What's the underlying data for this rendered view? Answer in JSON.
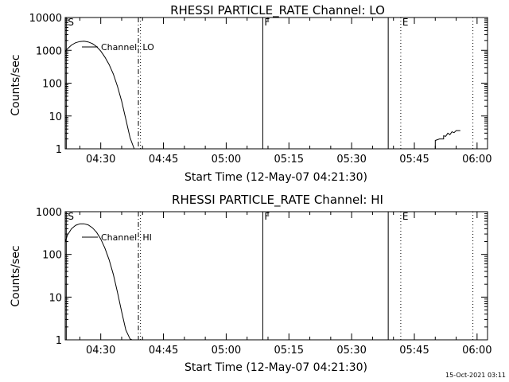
{
  "timestamp": "15-Oct-2021 03:11",
  "chart_data": [
    {
      "type": "line",
      "title": "RHESSI PARTICLE_RATE Channel: LO",
      "xlabel": "Start Time (12-May-07 04:21:30)",
      "ylabel": "Counts/sec",
      "yscale": "log",
      "ylim": [
        1,
        10000
      ],
      "xlim": [
        "04:21:30",
        "06:02:30"
      ],
      "x_tick_labels": [
        "04:30",
        "04:45",
        "05:00",
        "05:15",
        "05:30",
        "05:45",
        "06:00"
      ],
      "y_tick_labels": [
        "1",
        "10",
        "100",
        "1000",
        "10000"
      ],
      "legend": "top-left",
      "series": [
        {
          "name": "Channel: LO",
          "x": [
            "04:21:30",
            "04:22:00",
            "04:23:00",
            "04:24:00",
            "04:25:00",
            "04:26:00",
            "04:27:00",
            "04:28:00",
            "04:29:00",
            "04:30:00",
            "04:31:00",
            "04:32:00",
            "04:33:00",
            "04:34:00",
            "04:35:00",
            "04:36:00",
            "04:37:00",
            "04:38:00"
          ],
          "y": [
            900,
            1100,
            1450,
            1700,
            1850,
            1900,
            1800,
            1600,
            1300,
            950,
            620,
            370,
            190,
            80,
            28,
            8,
            2.2,
            1
          ]
        },
        {
          "name": "",
          "x": [
            "05:50:00",
            "05:50:00",
            "05:51:00",
            "05:52:00",
            "05:52:00",
            "05:52:30",
            "05:53:00",
            "05:53:30",
            "05:54:00",
            "05:54:30",
            "05:55:00",
            "05:56:00"
          ],
          "y": [
            1,
            1.8,
            2.0,
            2.0,
            2.5,
            2.4,
            3.0,
            2.7,
            3.3,
            3.1,
            3.6,
            3.6
          ]
        }
      ],
      "markers": [
        {
          "label": "S",
          "time": "04:21:45",
          "style": "solid"
        },
        {
          "label": "",
          "time": "04:39:00",
          "style": "dashdot"
        },
        {
          "label": "",
          "time": "04:39:30",
          "style": "dotted"
        },
        {
          "label": "F",
          "time": "05:08:45",
          "style": "solid"
        },
        {
          "label": "",
          "time": "05:38:45",
          "style": "solid"
        },
        {
          "label": "E",
          "time": "05:41:45",
          "style": "dotted"
        },
        {
          "label": "",
          "time": "05:59:00",
          "style": "dotted"
        }
      ]
    },
    {
      "type": "line",
      "title": "RHESSI PARTICLE_RATE Channel: HI",
      "xlabel": "Start Time (12-May-07 04:21:30)",
      "ylabel": "Counts/sec",
      "yscale": "log",
      "ylim": [
        1,
        1000
      ],
      "xlim": [
        "04:21:30",
        "06:02:30"
      ],
      "x_tick_labels": [
        "04:30",
        "04:45",
        "05:00",
        "05:15",
        "05:30",
        "05:45",
        "06:00"
      ],
      "y_tick_labels": [
        "1",
        "10",
        "100",
        "1000"
      ],
      "legend": "top-left",
      "series": [
        {
          "name": "Channel: HI",
          "x": [
            "04:21:30",
            "04:22:00",
            "04:23:00",
            "04:24:00",
            "04:25:00",
            "04:26:00",
            "04:27:00",
            "04:28:00",
            "04:29:00",
            "04:30:00",
            "04:31:00",
            "04:32:00",
            "04:33:00",
            "04:34:00",
            "04:35:00",
            "04:36:00",
            "04:37:00",
            "04:37:30"
          ],
          "y": [
            190,
            280,
            400,
            480,
            520,
            520,
            490,
            420,
            330,
            230,
            140,
            75,
            34,
            13,
            4.5,
            1.7,
            1.05,
            1
          ]
        }
      ],
      "markers": [
        {
          "label": "S",
          "time": "04:21:45",
          "style": "solid"
        },
        {
          "label": "",
          "time": "04:39:00",
          "style": "dashdot"
        },
        {
          "label": "",
          "time": "04:39:30",
          "style": "dotted"
        },
        {
          "label": "F",
          "time": "05:08:45",
          "style": "solid"
        },
        {
          "label": "",
          "time": "05:38:45",
          "style": "solid"
        },
        {
          "label": "E",
          "time": "05:41:45",
          "style": "dotted"
        },
        {
          "label": "",
          "time": "05:59:00",
          "style": "dotted"
        }
      ]
    }
  ]
}
